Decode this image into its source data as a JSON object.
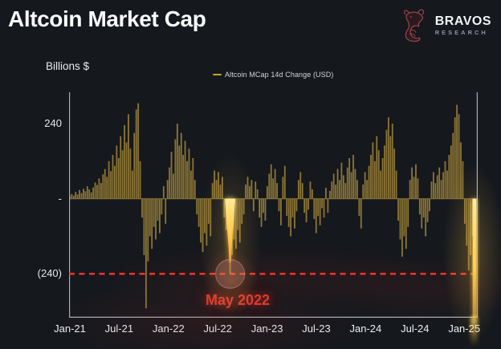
{
  "header": {
    "title": "Altcoin Market Cap",
    "logo": {
      "brand": "BRAVOS",
      "subtitle": "RESEARCH"
    }
  },
  "chart": {
    "y_axis_label": "Billions $",
    "legend_label": "Altcoin MCap 14d Change (USD)",
    "y_ticks": [
      {
        "label": "240",
        "value": 240
      },
      {
        "label": "-",
        "value": 0
      },
      {
        "label": "(240)",
        "value": -240
      }
    ],
    "x_ticks": [
      "Jan-21",
      "Jul-21",
      "Jan-22",
      "Jul-22",
      "Jan-23",
      "Jul-23",
      "Jan-24",
      "Jul-24",
      "Jan-25"
    ],
    "annotation": {
      "text": "May 2022",
      "color": "#e23b30"
    },
    "reference_line": {
      "value": -240,
      "style": "dashed",
      "color": "#ff352a"
    }
  },
  "chart_data": {
    "type": "bar",
    "title": "Altcoin Market Cap",
    "series_name": "Altcoin MCap 14d Change (USD)",
    "unit": "Billions $",
    "x_start": "Jan-21",
    "x_end": "Jan-25",
    "x_tick_labels": [
      "Jan-21",
      "Jul-21",
      "Jan-22",
      "Jul-22",
      "Jan-23",
      "Jul-23",
      "Jan-24",
      "Jul-24",
      "Jan-25"
    ],
    "ylim": [
      -380,
      340
    ],
    "y_tick_values": [
      240,
      0,
      -240
    ],
    "reference_value": -240,
    "grid": false,
    "legend_position": "top-center",
    "values": [
      8,
      15,
      10,
      22,
      14,
      28,
      18,
      32,
      24,
      40,
      30,
      20,
      36,
      52,
      44,
      65,
      50,
      78,
      95,
      70,
      120,
      88,
      140,
      105,
      170,
      130,
      200,
      155,
      235,
      180,
      270,
      160,
      90,
      210,
      285,
      305,
      120,
      -60,
      -180,
      -350,
      -200,
      -120,
      -160,
      -90,
      -130,
      -70,
      -110,
      -50,
      40,
      -80,
      60,
      100,
      150,
      80,
      190,
      240,
      170,
      210,
      140,
      185,
      120,
      160,
      90,
      130,
      60,
      -50,
      -90,
      -140,
      -170,
      -110,
      -150,
      -80,
      -120,
      50,
      90,
      60,
      85,
      45,
      70,
      -60,
      -100,
      -70,
      -240,
      -180,
      -130,
      -160,
      -100,
      -140,
      -80,
      -50,
      45,
      70,
      40,
      60,
      -40,
      55,
      30,
      -60,
      -90,
      -45,
      -70,
      40,
      80,
      110,
      65,
      95,
      50,
      -40,
      -85,
      70,
      105,
      -55,
      -90,
      -120,
      -60,
      -95,
      -40,
      60,
      85,
      50,
      -45,
      -75,
      -35,
      55,
      30,
      -65,
      -110,
      -55,
      -85,
      -30,
      -60,
      35,
      -45,
      25,
      55,
      80,
      45,
      95,
      60,
      115,
      75,
      50,
      100,
      130,
      85,
      140,
      95,
      60,
      -55,
      -95,
      45,
      85,
      60,
      105,
      140,
      180,
      120,
      200,
      155,
      90,
      130,
      170,
      220,
      260,
      200,
      240,
      160,
      90,
      -70,
      -130,
      -185,
      -120,
      -160,
      -90,
      60,
      100,
      70,
      110,
      65,
      -50,
      -95,
      -60,
      -120,
      -75,
      -40,
      55,
      85,
      50,
      75,
      100,
      60,
      85,
      120,
      90,
      140,
      170,
      210,
      260,
      300,
      270,
      180,
      120,
      -80,
      -150,
      -229,
      -180,
      -120,
      -245
    ],
    "highlights": {
      "may_2022_index": 82,
      "latest_index": 207
    },
    "bar_color": "#8d7635",
    "highlight_color": "#ffd44f"
  },
  "colors": {
    "background": "#15181d",
    "axis": "#a9aeb5",
    "text": "#e9ebee",
    "bar": "#8d7635",
    "highlight": "#ffd44f",
    "reference_red": "#ff352a",
    "annotation_red": "#e23b30",
    "legend_swatch": "#c9a227",
    "logo_red": "#9c4149"
  }
}
